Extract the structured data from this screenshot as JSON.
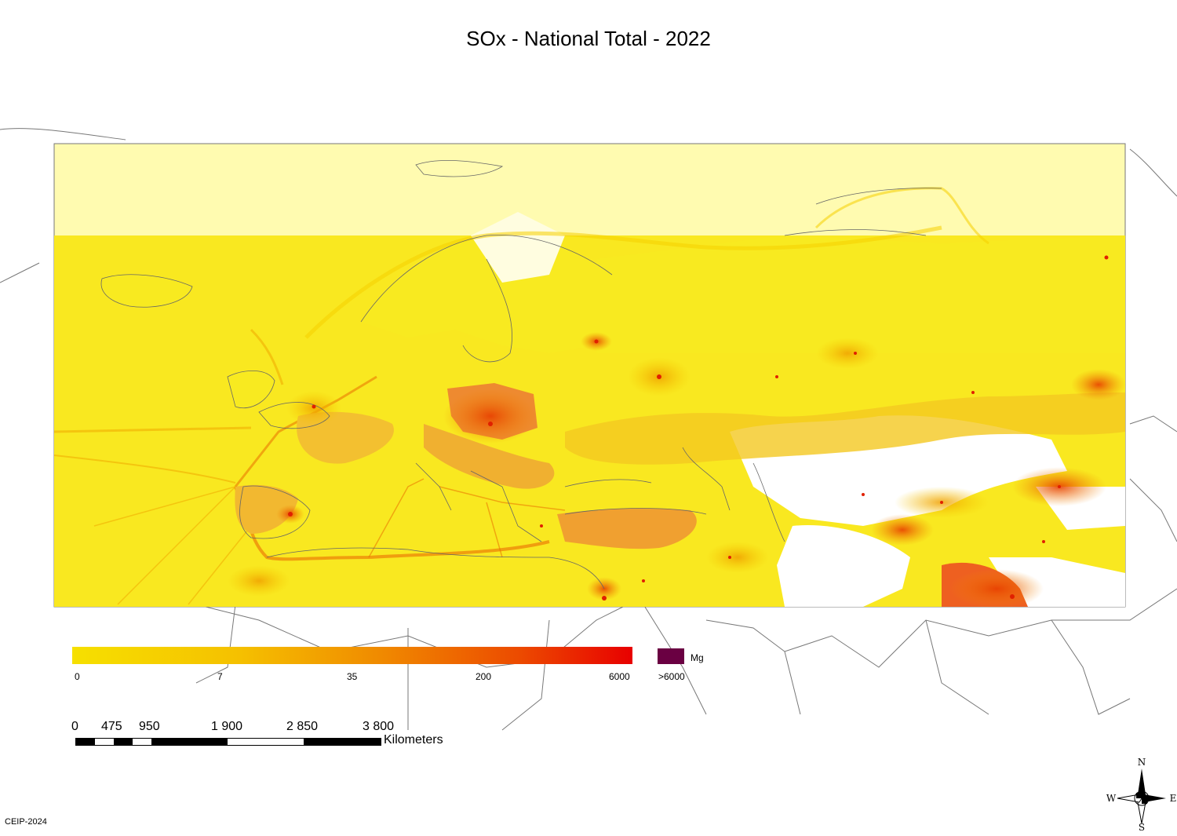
{
  "title": "SOx - National Total - 2022",
  "legend": {
    "unit": "Mg",
    "ticks": [
      "0",
      "7",
      "35",
      "200",
      "6000",
      ">6000"
    ],
    "colors": {
      "low": "#f6e000",
      "mid": "#f08a00",
      "high": "#e80000",
      "max": "#6a0042"
    }
  },
  "scale": {
    "labels": [
      "0",
      "475",
      "950",
      "1 900",
      "2 850",
      "3 800"
    ],
    "unit": "Kilometers"
  },
  "compass": {
    "n": "N",
    "s": "S",
    "e": "E",
    "w": "W"
  },
  "credit": "CEIP-2024"
}
